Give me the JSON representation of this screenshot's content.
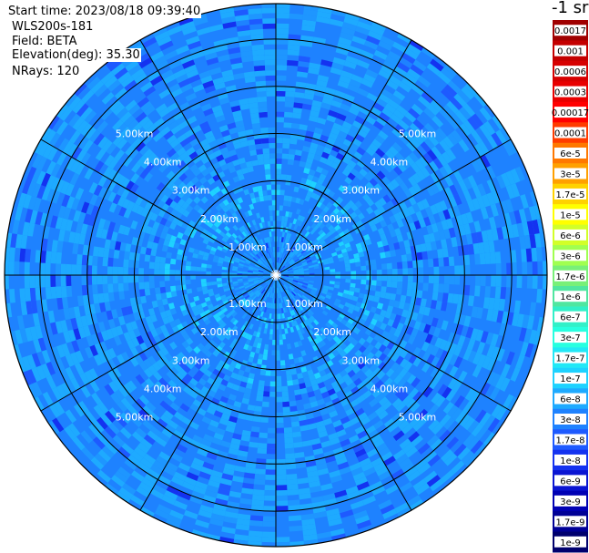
{
  "header": {
    "start_time": "Start time: 2023/08/18 09:39:40",
    "instrument": "WLS200s-181",
    "field": "Field: BETA",
    "elevation": "Elevation(deg): 35.30",
    "nrays": "NRays: 120"
  },
  "colorbar": {
    "title": "-1 sr",
    "ticks": [
      {
        "label": "0.0017",
        "color": "#a00000"
      },
      {
        "label": "0.001",
        "color": "#c40000"
      },
      {
        "label": "0.0006",
        "color": "#d60000"
      },
      {
        "label": "0.0003",
        "color": "#e80000"
      },
      {
        "label": "0.00017",
        "color": "#ff0000"
      },
      {
        "label": "0.0001",
        "color": "#ff3c00"
      },
      {
        "label": "6e-5",
        "color": "#ff7800"
      },
      {
        "label": "3e-5",
        "color": "#ffa000"
      },
      {
        "label": "1.7e-5",
        "color": "#ffd200"
      },
      {
        "label": "1e-5",
        "color": "#ffff00"
      },
      {
        "label": "6e-6",
        "color": "#d2ff28"
      },
      {
        "label": "3e-6",
        "color": "#a0ff50"
      },
      {
        "label": "1.7e-6",
        "color": "#78f078"
      },
      {
        "label": "1e-6",
        "color": "#50e6a0"
      },
      {
        "label": "6e-7",
        "color": "#32f0c8"
      },
      {
        "label": "3e-7",
        "color": "#28ffe0"
      },
      {
        "label": "1.7e-7",
        "color": "#22e8f6"
      },
      {
        "label": "1e-7",
        "color": "#1ed2ff"
      },
      {
        "label": "6e-8",
        "color": "#1eaaff"
      },
      {
        "label": "3e-8",
        "color": "#1e82ff"
      },
      {
        "label": "1.7e-8",
        "color": "#1e5aff"
      },
      {
        "label": "1e-8",
        "color": "#1432f0"
      },
      {
        "label": "6e-9",
        "color": "#0a14d2"
      },
      {
        "label": "3e-9",
        "color": "#0000b4"
      },
      {
        "label": "1.7e-9",
        "color": "#000096"
      },
      {
        "label": "1e-9",
        "color": "#00006e"
      }
    ]
  },
  "chart_data": {
    "type": "heatmap",
    "projection": "polar (PPI)",
    "field": "BETA",
    "units": "-1 sr",
    "nrays": 120,
    "range_rings_km": [
      1,
      2,
      3,
      4,
      5
    ],
    "ring_labels": [
      "1.00km",
      "2.00km",
      "3.00km",
      "4.00km",
      "5.00km"
    ],
    "max_range_km": 5.75,
    "spokes_deg": [
      0,
      30,
      60,
      90,
      120,
      150,
      180,
      210,
      240,
      270,
      300,
      330
    ],
    "value_profile_by_range": [
      {
        "range_km": 0.3,
        "beta": "1.7e-8"
      },
      {
        "range_km": 1.0,
        "beta": "6e-8"
      },
      {
        "range_km": 2.0,
        "beta": "6e-8"
      },
      {
        "range_km": 3.0,
        "beta": "1.7e-8"
      },
      {
        "range_km": 4.0,
        "beta": "1.7e-8"
      },
      {
        "range_km": 5.0,
        "beta": "1.7e-8"
      }
    ]
  }
}
